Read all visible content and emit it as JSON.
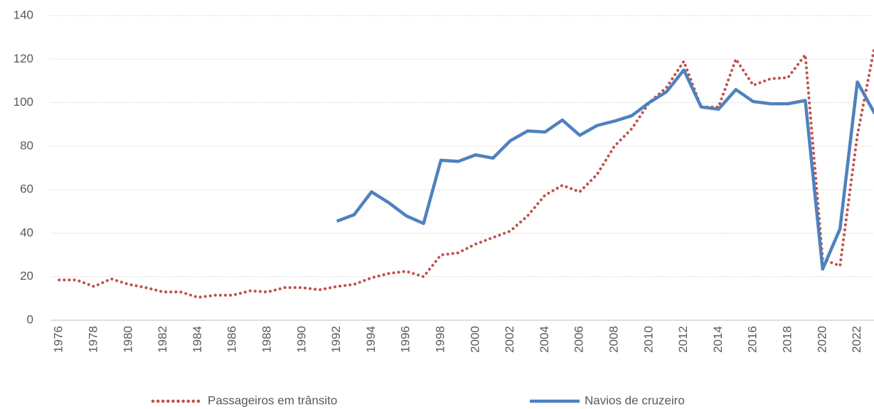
{
  "chart_data": {
    "type": "line",
    "categories": [
      "1976",
      null,
      "1978",
      null,
      "1980",
      null,
      "1982",
      null,
      "1984",
      null,
      "1986",
      null,
      "1988",
      null,
      "1990",
      null,
      "1992",
      null,
      "1994",
      null,
      "1996",
      null,
      "1998",
      null,
      "2000",
      null,
      "2002",
      null,
      "2004",
      null,
      "2006",
      null,
      "2008",
      null,
      "2010",
      null,
      "2012",
      null,
      "2014",
      null,
      "2016",
      null,
      "2018",
      null,
      "2020",
      null,
      "2022",
      null
    ],
    "series": [
      {
        "name": "Passageiros em trânsito",
        "color": "#c0504d",
        "dash": "dotted",
        "values": [
          18.5,
          18.5,
          15.5,
          19,
          16.5,
          15,
          13,
          13,
          10.5,
          11.5,
          11.5,
          13.5,
          13,
          15,
          15,
          14,
          15.5,
          16.5,
          19.5,
          21.5,
          22.5,
          20,
          30,
          31,
          35,
          38,
          41,
          48,
          57.5,
          62,
          59,
          67,
          80,
          88,
          100,
          107,
          119,
          98,
          98,
          120,
          108,
          111,
          111.5,
          122,
          28,
          25,
          85,
          126
        ]
      },
      {
        "name": "Navios de cruzeiro",
        "color": "#4f81bd",
        "dash": "solid",
        "values": [
          null,
          null,
          null,
          null,
          null,
          null,
          null,
          null,
          null,
          null,
          null,
          null,
          null,
          null,
          null,
          null,
          45.5,
          48.5,
          59,
          54,
          48,
          44.5,
          73.5,
          73,
          76,
          74.5,
          82.5,
          87,
          86.5,
          92,
          85,
          89.5,
          91.5,
          94,
          100,
          105,
          115,
          98,
          97,
          106,
          100.5,
          99.5,
          99.5,
          101,
          23.5,
          42,
          109.5,
          95
        ]
      }
    ],
    "ylim": [
      0,
      140
    ],
    "yticks": [
      0,
      20,
      40,
      60,
      80,
      100,
      120,
      140
    ],
    "grid": true,
    "legend": "bottom"
  }
}
